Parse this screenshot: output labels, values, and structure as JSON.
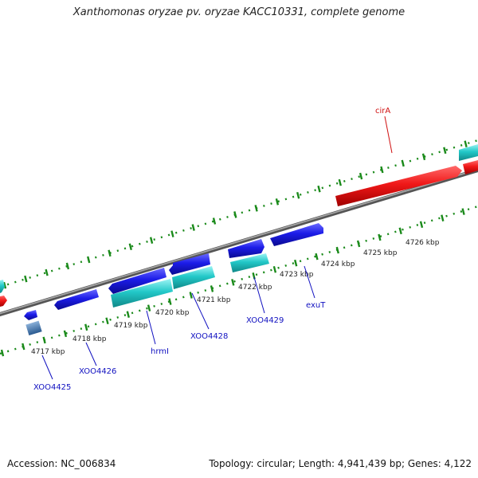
{
  "title": "Xanthomonas oryzae pv. oryzae KACC10331, complete genome",
  "footer": {
    "accession": "Accession: NC_006834",
    "topology": "Topology: circular; Length: 4,941,439 bp; Genes: 4,122"
  },
  "colors": {
    "forward_cds": "#2020e0",
    "reverse_cds": "#20c8c8",
    "highlight_gene": "#e81010",
    "backbone": "#888888",
    "tick": "#1a8a1a",
    "gene_label": "#1010c0",
    "highlight_label": "#d01010",
    "rrna_feature": "#4a78b0"
  },
  "scale": {
    "unit": "kbp",
    "ticks": [
      {
        "value": 4717,
        "label": "4717 kbp"
      },
      {
        "value": 4718,
        "label": "4718 kbp"
      },
      {
        "value": 4719,
        "label": "4719 kbp"
      },
      {
        "value": 4720,
        "label": "4720 kbp"
      },
      {
        "value": 4721,
        "label": "4721 kbp"
      },
      {
        "value": 4722,
        "label": "4722 kbp"
      },
      {
        "value": 4723,
        "label": "4723 kbp"
      },
      {
        "value": 4724,
        "label": "4724 kbp"
      },
      {
        "value": 4725,
        "label": "4725 kbp"
      },
      {
        "value": 4726,
        "label": "4726 kbp"
      }
    ]
  },
  "gene_labels": [
    {
      "name": "XOO4425",
      "highlight": false
    },
    {
      "name": "XOO4426",
      "highlight": false
    },
    {
      "name": "hrmI",
      "highlight": false
    },
    {
      "name": "XOO4428",
      "highlight": false
    },
    {
      "name": "XOO4429",
      "highlight": false
    },
    {
      "name": "exuT",
      "highlight": false
    },
    {
      "name": "cirA",
      "highlight": true
    }
  ]
}
